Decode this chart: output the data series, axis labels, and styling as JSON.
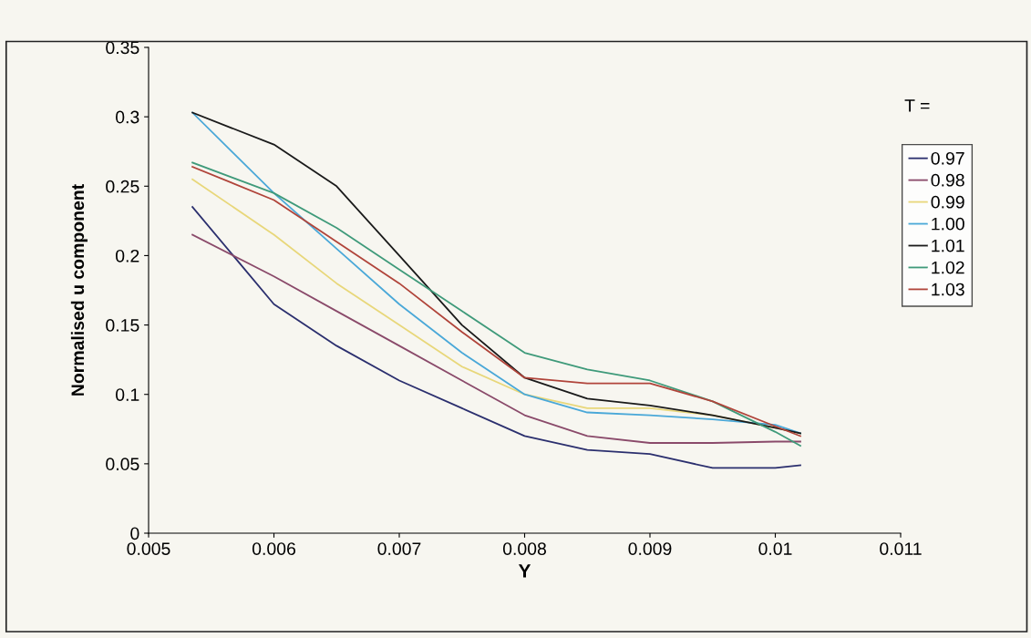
{
  "chart_data": {
    "type": "line",
    "xlabel": "Y",
    "ylabel": "Normalised u component",
    "legend_title": "T =",
    "x": [
      0.00535,
      0.006,
      0.0065,
      0.007,
      0.0075,
      0.008,
      0.0085,
      0.009,
      0.0095,
      0.01,
      0.0102
    ],
    "series": [
      {
        "name": "0.97",
        "color": "#2b2f6e",
        "values": [
          0.235,
          0.165,
          0.135,
          0.11,
          0.09,
          0.07,
          0.06,
          0.057,
          0.047,
          0.047,
          0.049
        ]
      },
      {
        "name": "0.98",
        "color": "#8a4a6a",
        "values": [
          0.215,
          0.185,
          0.16,
          0.135,
          0.11,
          0.085,
          0.07,
          0.065,
          0.065,
          0.066,
          0.066
        ]
      },
      {
        "name": "0.99",
        "color": "#e8d77a",
        "values": [
          0.255,
          0.215,
          0.18,
          0.15,
          0.12,
          0.1,
          0.09,
          0.09,
          0.085,
          0.076,
          0.072
        ]
      },
      {
        "name": "1.00",
        "color": "#4aa8d8",
        "values": [
          0.303,
          0.245,
          0.205,
          0.165,
          0.13,
          0.1,
          0.087,
          0.085,
          0.082,
          0.078,
          0.072
        ]
      },
      {
        "name": "1.01",
        "color": "#1a1a1a",
        "values": [
          0.303,
          0.28,
          0.25,
          0.2,
          0.15,
          0.112,
          0.097,
          0.092,
          0.085,
          0.076,
          0.072
        ]
      },
      {
        "name": "1.02",
        "color": "#3f9a7a",
        "values": [
          0.267,
          0.245,
          0.22,
          0.19,
          0.16,
          0.13,
          0.118,
          0.11,
          0.095,
          0.073,
          0.063
        ]
      },
      {
        "name": "1.03",
        "color": "#b0443a",
        "values": [
          0.264,
          0.24,
          0.21,
          0.18,
          0.145,
          0.112,
          0.108,
          0.108,
          0.095,
          0.077,
          0.07
        ]
      }
    ],
    "xlim": [
      0.005,
      0.011
    ],
    "xticks": [
      0.005,
      0.006,
      0.007,
      0.008,
      0.009,
      0.01,
      0.011
    ],
    "ylim": [
      0,
      0.35
    ],
    "yticks": [
      0,
      0.05,
      0.1,
      0.15,
      0.2,
      0.25,
      0.3,
      0.35
    ],
    "legend": "right",
    "grid": false,
    "marker": "none",
    "line_style": "solid"
  }
}
